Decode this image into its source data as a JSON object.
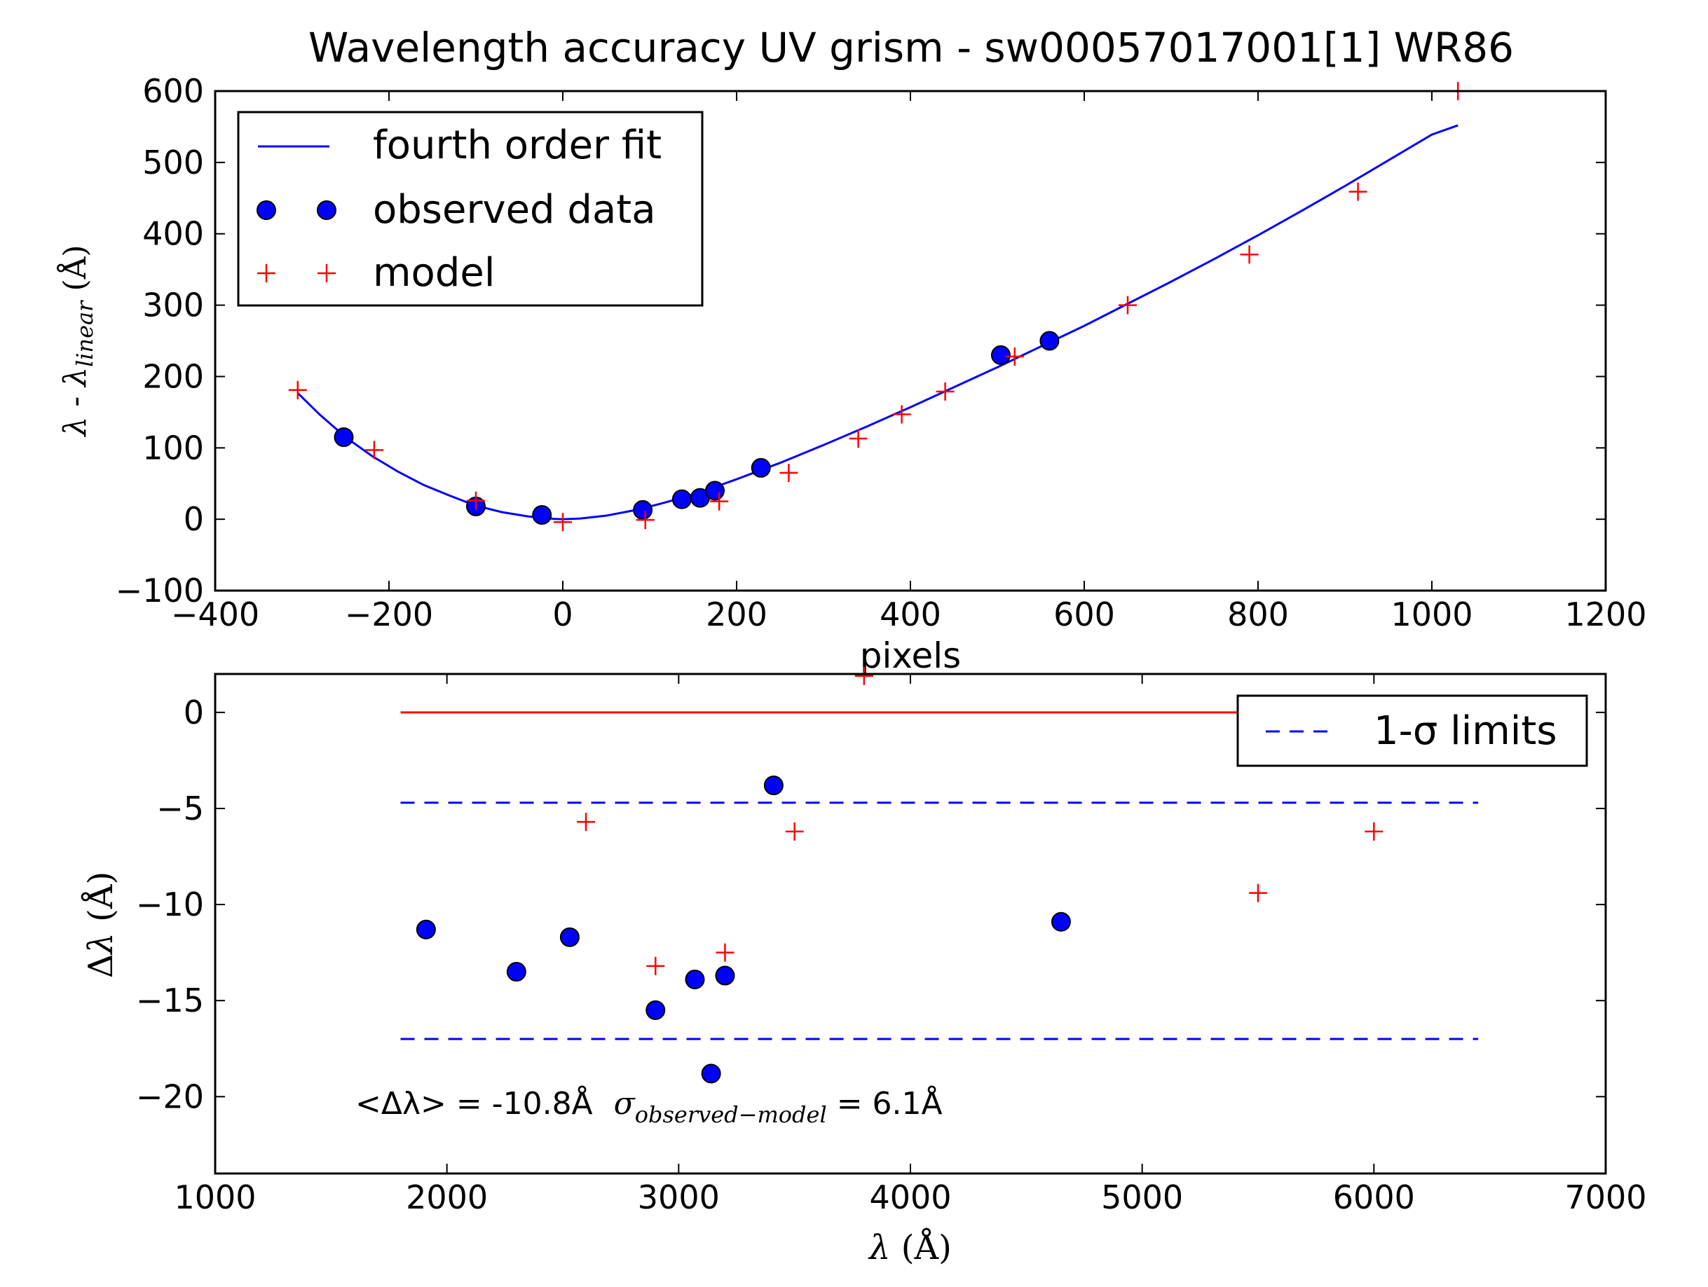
{
  "figure_title": "Wavelength accuracy UV grism - sw00057017001[1] WR86",
  "colors": {
    "fit": "#0000ff",
    "observed": "#0000ff",
    "model": "#ff0000",
    "zero_line": "#ff0000",
    "sigma": "#0000ff"
  },
  "chart_data": [
    {
      "type": "scatter",
      "title": "Wavelength accuracy UV grism - sw00057017001[1] WR86",
      "xlabel": "pixels",
      "ylabel": "λ - λ_linear (Å)",
      "xlim": [
        -400,
        1200
      ],
      "ylim": [
        -100,
        600
      ],
      "xticks": [
        "−400",
        "−200",
        "0",
        "200",
        "400",
        "600",
        "800",
        "1000",
        "1200"
      ],
      "yticks": [
        "−100",
        "0",
        "100",
        "200",
        "300",
        "400",
        "500",
        "600"
      ],
      "legend": {
        "placement": "upper-left",
        "entries": [
          {
            "label": "fourth order fit",
            "kind": "line"
          },
          {
            "label": "observed data",
            "kind": "circle"
          },
          {
            "label": "model",
            "kind": "plus"
          }
        ]
      },
      "series": [
        {
          "name": "fourth order fit",
          "kind": "line",
          "x": [
            -305,
            -280,
            -250,
            -220,
            -190,
            -160,
            -130,
            -100,
            -70,
            -40,
            -10,
            0,
            20,
            50,
            80,
            110,
            140,
            170,
            200,
            250,
            300,
            350,
            400,
            450,
            500,
            550,
            600,
            650,
            700,
            750,
            800,
            850,
            900,
            950,
            1000,
            1030
          ],
          "y": [
            177,
            147,
            115,
            89,
            67,
            48,
            33,
            19,
            10,
            4,
            0.5,
            0,
            1,
            5,
            12,
            21,
            31,
            43,
            56,
            79,
            104,
            130,
            157,
            185,
            213,
            242,
            271,
            302,
            333,
            365,
            398,
            432,
            467,
            503,
            539,
            552
          ]
        },
        {
          "name": "observed data",
          "kind": "circle",
          "x": [
            -252,
            -100,
            -24,
            92,
            137,
            158,
            175,
            228,
            504,
            560
          ],
          "y": [
            115,
            18,
            6,
            13,
            28,
            30,
            40,
            72,
            230,
            250
          ]
        },
        {
          "name": "model",
          "kind": "plus",
          "x": [
            -305,
            -217,
            -100,
            0,
            95,
            180,
            260,
            340,
            390,
            440,
            520,
            650,
            790,
            915,
            1030
          ],
          "y": [
            181,
            97,
            26,
            -4,
            -1,
            25,
            65,
            113,
            147,
            179,
            228,
            300,
            371,
            459,
            600
          ]
        }
      ]
    },
    {
      "type": "scatter",
      "title": "",
      "xlabel": "λ (Å)",
      "ylabel": "Δλ (Å)",
      "xlim": [
        1000,
        7000
      ],
      "ylim": [
        -24,
        2
      ],
      "xticks": [
        "1000",
        "2000",
        "3000",
        "4000",
        "5000",
        "6000",
        "7000"
      ],
      "yticks": [
        "−20",
        "−15",
        "−10",
        "−5",
        "0"
      ],
      "legend": {
        "placement": "upper-right",
        "entries": [
          {
            "label": "1-σ limits",
            "kind": "dashed"
          }
        ]
      },
      "annotation": {
        "part1": "<Δλ> = -10.8Å",
        "sigma_symbol": "σ",
        "sigma_subscript": "observed−model",
        "part2": " = 6.1Å"
      },
      "series": [
        {
          "name": "",
          "kind": "zero-line",
          "x": [
            1800,
            6450
          ],
          "y": [
            0,
            0
          ]
        },
        {
          "name": "1-σ limits",
          "kind": "dashed",
          "x": [
            1800,
            6450
          ],
          "y": [
            -4.7,
            -4.7
          ]
        },
        {
          "name": "",
          "kind": "dashed",
          "x": [
            1800,
            6450
          ],
          "y": [
            -17,
            -17
          ]
        },
        {
          "name": "",
          "kind": "circle",
          "x": [
            1910,
            2300,
            2530,
            2900,
            3070,
            3140,
            3200,
            3410,
            4650
          ],
          "y": [
            -11.3,
            -13.5,
            -11.7,
            -15.5,
            -13.9,
            -18.8,
            -13.7,
            -3.8,
            -10.9
          ]
        },
        {
          "name": "",
          "kind": "plus",
          "x": [
            2600,
            2900,
            3200,
            3500,
            3800,
            5500,
            6000
          ],
          "y": [
            -5.7,
            -13.2,
            -12.5,
            -6.2,
            1.9,
            -9.4,
            -6.2
          ]
        }
      ]
    }
  ]
}
